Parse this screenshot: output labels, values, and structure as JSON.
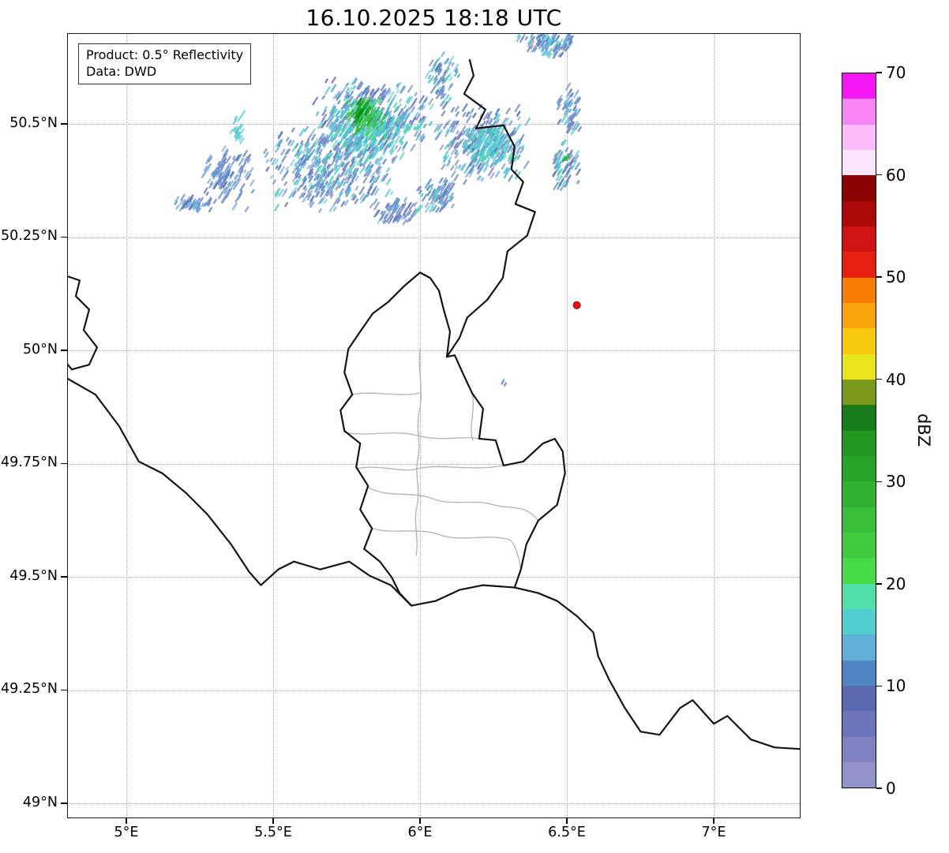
{
  "title": "16.10.2025 18:18 UTC",
  "annotation": {
    "line1": "Product: 0.5° Reflectivity",
    "line2": "Data: DWD"
  },
  "axes": {
    "x_min": 4.7984,
    "x_max": 7.2957,
    "y_min": 48.9665,
    "y_max": 50.7,
    "x_ticks": [
      {
        "value": 5.0,
        "label": "5°E"
      },
      {
        "value": 5.5,
        "label": "5.5°E"
      },
      {
        "value": 6.0,
        "label": "6°E"
      },
      {
        "value": 6.5,
        "label": "6.5°E"
      },
      {
        "value": 7.0,
        "label": "7°E"
      }
    ],
    "y_ticks": [
      {
        "value": 50.5,
        "label": "50.5°N"
      },
      {
        "value": 50.25,
        "label": "50.25°N"
      },
      {
        "value": 50.0,
        "label": "50°N"
      },
      {
        "value": 49.75,
        "label": "49.75°N"
      },
      {
        "value": 49.5,
        "label": "49.5°N"
      },
      {
        "value": 49.25,
        "label": "49.25°N"
      },
      {
        "value": 49.0,
        "label": "49°N"
      }
    ]
  },
  "colorbar": {
    "label": "dBZ",
    "min": 0,
    "max": 70,
    "tick_values": [
      0,
      10,
      20,
      30,
      40,
      50,
      60,
      70
    ],
    "segment_step": 2.5,
    "colors_bottom_to_top": [
      "#9193ca",
      "#7e82c2",
      "#6b73ba",
      "#5b69b2",
      "#4e86c4",
      "#61aed8",
      "#50cfd0",
      "#4fdfa7",
      "#46da46",
      "#3ecc3e",
      "#37bf37",
      "#30b230",
      "#28a428",
      "#219621",
      "#187d18",
      "#7c9a1c",
      "#eae41a",
      "#f8c80d",
      "#f9a30b",
      "#f97c08",
      "#e81f10",
      "#cf1212",
      "#ad0808",
      "#8c0303",
      "#fbe4fb",
      "#f9bcf9",
      "#f785f7",
      "#f419f4"
    ]
  },
  "marker": {
    "lon": 6.535,
    "lat": 50.1,
    "color": "#f01010"
  },
  "chart_data": {
    "type": "heatmap",
    "units": "dBZ",
    "extent": {
      "lon_min": 4.8,
      "lon_max": 7.3,
      "lat_min": 48.97,
      "lat_max": 50.7
    },
    "palettes": {
      "blue": [
        "#848bc9",
        "#7280c4",
        "#6274bd",
        "#5886c8",
        "#619fd2",
        "#75b7dc",
        "#87a0d6"
      ],
      "blue_cyan": [
        "#848bc9",
        "#7280c4",
        "#6274bd",
        "#5886c8",
        "#619fd2",
        "#75b7dc",
        "#55c8da",
        "#52d8c0"
      ],
      "cyan": [
        "#50c4d8",
        "#48d2c4",
        "#52dcae",
        "#68cfe2",
        "#3fc8cc"
      ],
      "green": [
        "#3ac24a",
        "#2cb13a",
        "#58d560"
      ],
      "deepgreen": [
        "#0e9c16",
        "#0a860e",
        "#1cae24"
      ]
    },
    "echoes": [
      {
        "lon": 5.699,
        "lat": 50.407,
        "w": 0.4,
        "h": 0.165,
        "n": 420,
        "palette": "blue_cyan",
        "seed": 101
      },
      {
        "lon": 5.833,
        "lat": 50.512,
        "w": 0.35,
        "h": 0.148,
        "n": 380,
        "palette": "blue_cyan",
        "seed": 102
      },
      {
        "lon": 5.82,
        "lat": 50.486,
        "w": 0.24,
        "h": 0.122,
        "n": 170,
        "palette": "cyan",
        "seed": 103
      },
      {
        "lon": 5.812,
        "lat": 50.515,
        "w": 0.113,
        "h": 0.08,
        "n": 85,
        "palette": "green",
        "seed": 104
      },
      {
        "lon": 5.801,
        "lat": 50.529,
        "w": 0.054,
        "h": 0.042,
        "n": 30,
        "palette": "deepgreen",
        "seed": 105
      },
      {
        "lon": 6.21,
        "lat": 50.46,
        "w": 0.269,
        "h": 0.148,
        "n": 300,
        "palette": "blue_cyan",
        "seed": 106
      },
      {
        "lon": 6.236,
        "lat": 50.451,
        "w": 0.161,
        "h": 0.087,
        "n": 85,
        "palette": "cyan",
        "seed": 107
      },
      {
        "lon": 6.075,
        "lat": 50.599,
        "w": 0.102,
        "h": 0.101,
        "n": 70,
        "palette": "blue_cyan",
        "seed": 108
      },
      {
        "lon": 6.433,
        "lat": 50.677,
        "w": 0.172,
        "h": 0.052,
        "n": 90,
        "palette": "blue_cyan",
        "seed": 109
      },
      {
        "lon": 6.511,
        "lat": 50.533,
        "w": 0.07,
        "h": 0.096,
        "n": 55,
        "palette": "blue_cyan",
        "seed": 110
      },
      {
        "lon": 6.494,
        "lat": 50.407,
        "w": 0.081,
        "h": 0.101,
        "n": 60,
        "palette": "blue_cyan",
        "seed": 111
      },
      {
        "lon": 6.497,
        "lat": 50.425,
        "w": 0.022,
        "h": 0.017,
        "n": 6,
        "palette": "green",
        "seed": 112
      },
      {
        "lon": 5.376,
        "lat": 50.489,
        "w": 0.038,
        "h": 0.056,
        "n": 20,
        "palette": "cyan",
        "seed": 113
      },
      {
        "lon": 5.341,
        "lat": 50.381,
        "w": 0.156,
        "h": 0.115,
        "n": 130,
        "palette": "blue",
        "seed": 114
      },
      {
        "lon": 5.223,
        "lat": 50.324,
        "w": 0.113,
        "h": 0.031,
        "n": 45,
        "palette": "blue",
        "seed": 115
      },
      {
        "lon": 5.914,
        "lat": 50.306,
        "w": 0.124,
        "h": 0.045,
        "n": 70,
        "palette": "blue",
        "seed": 116
      },
      {
        "lon": 6.054,
        "lat": 50.341,
        "w": 0.124,
        "h": 0.063,
        "n": 80,
        "palette": "blue_cyan",
        "seed": 117
      },
      {
        "lon": 6.29,
        "lat": 49.928,
        "w": 0.022,
        "h": 0.014,
        "n": 3,
        "palette": "blue",
        "seed": 118
      }
    ]
  }
}
